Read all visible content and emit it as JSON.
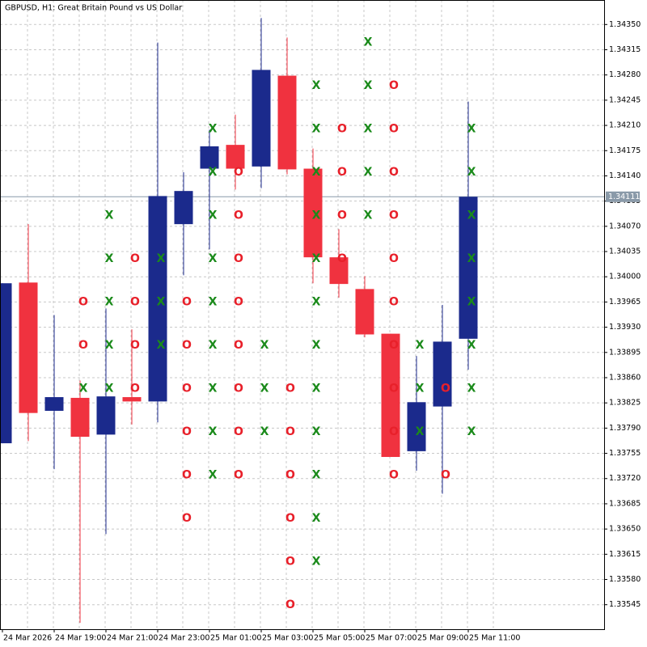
{
  "chart_data": {
    "type": "candlestick",
    "title": "GBPUSD, H1:  Great Britain Pound vs US Dollar",
    "categories": [
      "24 Mar 2026",
      null,
      "24 Mar 19:00",
      null,
      "24 Mar 21:00",
      null,
      "24 Mar 23:00",
      null,
      "25 Mar 01:00",
      null,
      "25 Mar 03:00",
      null,
      "25 Mar 05:00",
      null,
      "25 Mar 07:00",
      null,
      "25 Mar 09:00",
      null,
      "25 Mar 11:00"
    ],
    "open": [
      1.33769,
      1.33992,
      1.33814,
      1.33832,
      1.33781,
      1.33833,
      1.33827,
      1.34073,
      1.3415,
      1.34183,
      1.34153,
      1.34279,
      1.3415,
      1.34027,
      1.33983,
      1.33921,
      1.33758,
      1.3382,
      1.33914
    ],
    "high": [
      1.33991,
      1.34073,
      1.33947,
      1.33856,
      1.33956,
      1.33927,
      1.34325,
      1.34145,
      1.34204,
      1.34225,
      1.34359,
      1.34332,
      1.34178,
      1.34066,
      1.34001,
      1.33921,
      1.3389,
      1.33961,
      1.34243
    ],
    "low": [
      1.33769,
      1.33772,
      1.33733,
      1.3352,
      1.33643,
      1.33795,
      1.33798,
      1.34002,
      1.34038,
      1.34121,
      1.34123,
      1.34142,
      1.33991,
      1.33971,
      1.33916,
      1.3375,
      1.33731,
      1.33699,
      1.33871
    ],
    "close": [
      1.33991,
      1.33811,
      1.33833,
      1.33778,
      1.33834,
      1.33827,
      1.34112,
      1.34119,
      1.34181,
      1.3415,
      1.34287,
      1.34149,
      1.34027,
      1.3399,
      1.3392,
      1.3375,
      1.33826,
      1.3391,
      1.34111
    ],
    "up_color": "#1b2a8c",
    "down_color": "#f0323f",
    "x_marks": {
      "symbol": "X",
      "color": "#1a8a1a",
      "values": [
        [],
        [],
        [],
        [
          1.33846
        ],
        [
          1.34086,
          1.34026,
          1.33966,
          1.33906,
          1.33846
        ],
        [],
        [
          1.34026,
          1.33966,
          1.33906
        ],
        [],
        [
          1.34206,
          1.34146,
          1.34086,
          1.34026,
          1.33966,
          1.33906,
          1.33846,
          1.33786,
          1.33726
        ],
        [],
        [
          1.33906,
          1.33846,
          1.33786
        ],
        [],
        [
          1.34266,
          1.34206,
          1.34146,
          1.34086,
          1.34026,
          1.33966,
          1.33906,
          1.33846,
          1.33786,
          1.33726,
          1.33666,
          1.33606
        ],
        [],
        [
          1.34326,
          1.34266,
          1.34206,
          1.34146,
          1.34086
        ],
        [],
        [
          1.33906,
          1.33846,
          1.33786
        ],
        [],
        [
          1.34206,
          1.34146,
          1.34086,
          1.34026,
          1.33966,
          1.33906,
          1.33846,
          1.33786
        ]
      ]
    },
    "o_marks": {
      "symbol": "O",
      "color": "#e8202a",
      "values": [
        [],
        [],
        [],
        [
          1.33966,
          1.33906
        ],
        [],
        [
          1.34026,
          1.33966,
          1.33906,
          1.33846
        ],
        [],
        [
          1.33966,
          1.33906,
          1.33846,
          1.33786,
          1.33726,
          1.33666
        ],
        [],
        [
          1.34146,
          1.34086,
          1.34026,
          1.33966,
          1.33906,
          1.33846,
          1.33786,
          1.33726
        ],
        [],
        [
          1.33846,
          1.33786,
          1.33726,
          1.33666,
          1.33606,
          1.33546
        ],
        [],
        [
          1.34206,
          1.34146,
          1.34086,
          1.34026
        ],
        [],
        [
          1.34266,
          1.34206,
          1.34146,
          1.34086,
          1.34026,
          1.33966,
          1.33906,
          1.33846,
          1.33786,
          1.33726
        ],
        [],
        [
          1.33846,
          1.33726
        ],
        []
      ]
    },
    "last_price": 1.34111,
    "ylim": [
      1.33511,
      1.34384
    ],
    "yticks": [
      {
        "value": 1.3435,
        "label": "1.34350"
      },
      1.34315,
      {
        "value": 1.3428,
        "label": "1.34280"
      },
      1.34245,
      {
        "value": 1.3421,
        "label": "1.34210"
      },
      1.34175,
      {
        "value": 1.3414,
        "label": "1.34140"
      },
      1.34105,
      {
        "value": 1.3407,
        "label": "1.34070"
      },
      1.34035,
      {
        "value": 1.34,
        "label": "1.34000"
      },
      1.33965,
      {
        "value": 1.3393,
        "label": "1.33930"
      },
      1.33895,
      {
        "value": 1.3386,
        "label": "1.33860"
      },
      1.33825,
      {
        "value": 1.3379,
        "label": "1.33790"
      },
      1.33755,
      {
        "value": 1.3372,
        "label": "1.33720"
      },
      1.33685,
      {
        "value": 1.3365,
        "label": "1.33650"
      },
      1.33615,
      {
        "value": 1.3358,
        "label": "1.33580"
      },
      1.33545
    ],
    "grid": true
  }
}
